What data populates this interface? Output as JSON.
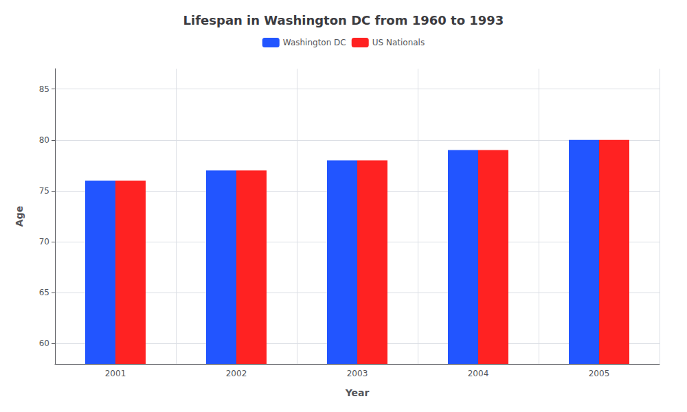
{
  "chart_data": {
    "type": "bar",
    "title": "Lifespan in Washington DC from 1960 to 1993",
    "categories": [
      "2001",
      "2002",
      "2003",
      "2004",
      "2005"
    ],
    "series": [
      {
        "name": "Washington DC",
        "color": "#2255ff",
        "values": [
          76,
          77,
          78,
          79,
          80
        ]
      },
      {
        "name": "US Nationals",
        "color": "#ff2222",
        "values": [
          76,
          77,
          78,
          79,
          80
        ]
      }
    ],
    "xlabel": "Year",
    "ylabel": "Age",
    "ylim": [
      58,
      87
    ],
    "yticks": [
      60,
      65,
      70,
      75,
      80,
      85
    ],
    "grid": true,
    "legend": "top"
  }
}
